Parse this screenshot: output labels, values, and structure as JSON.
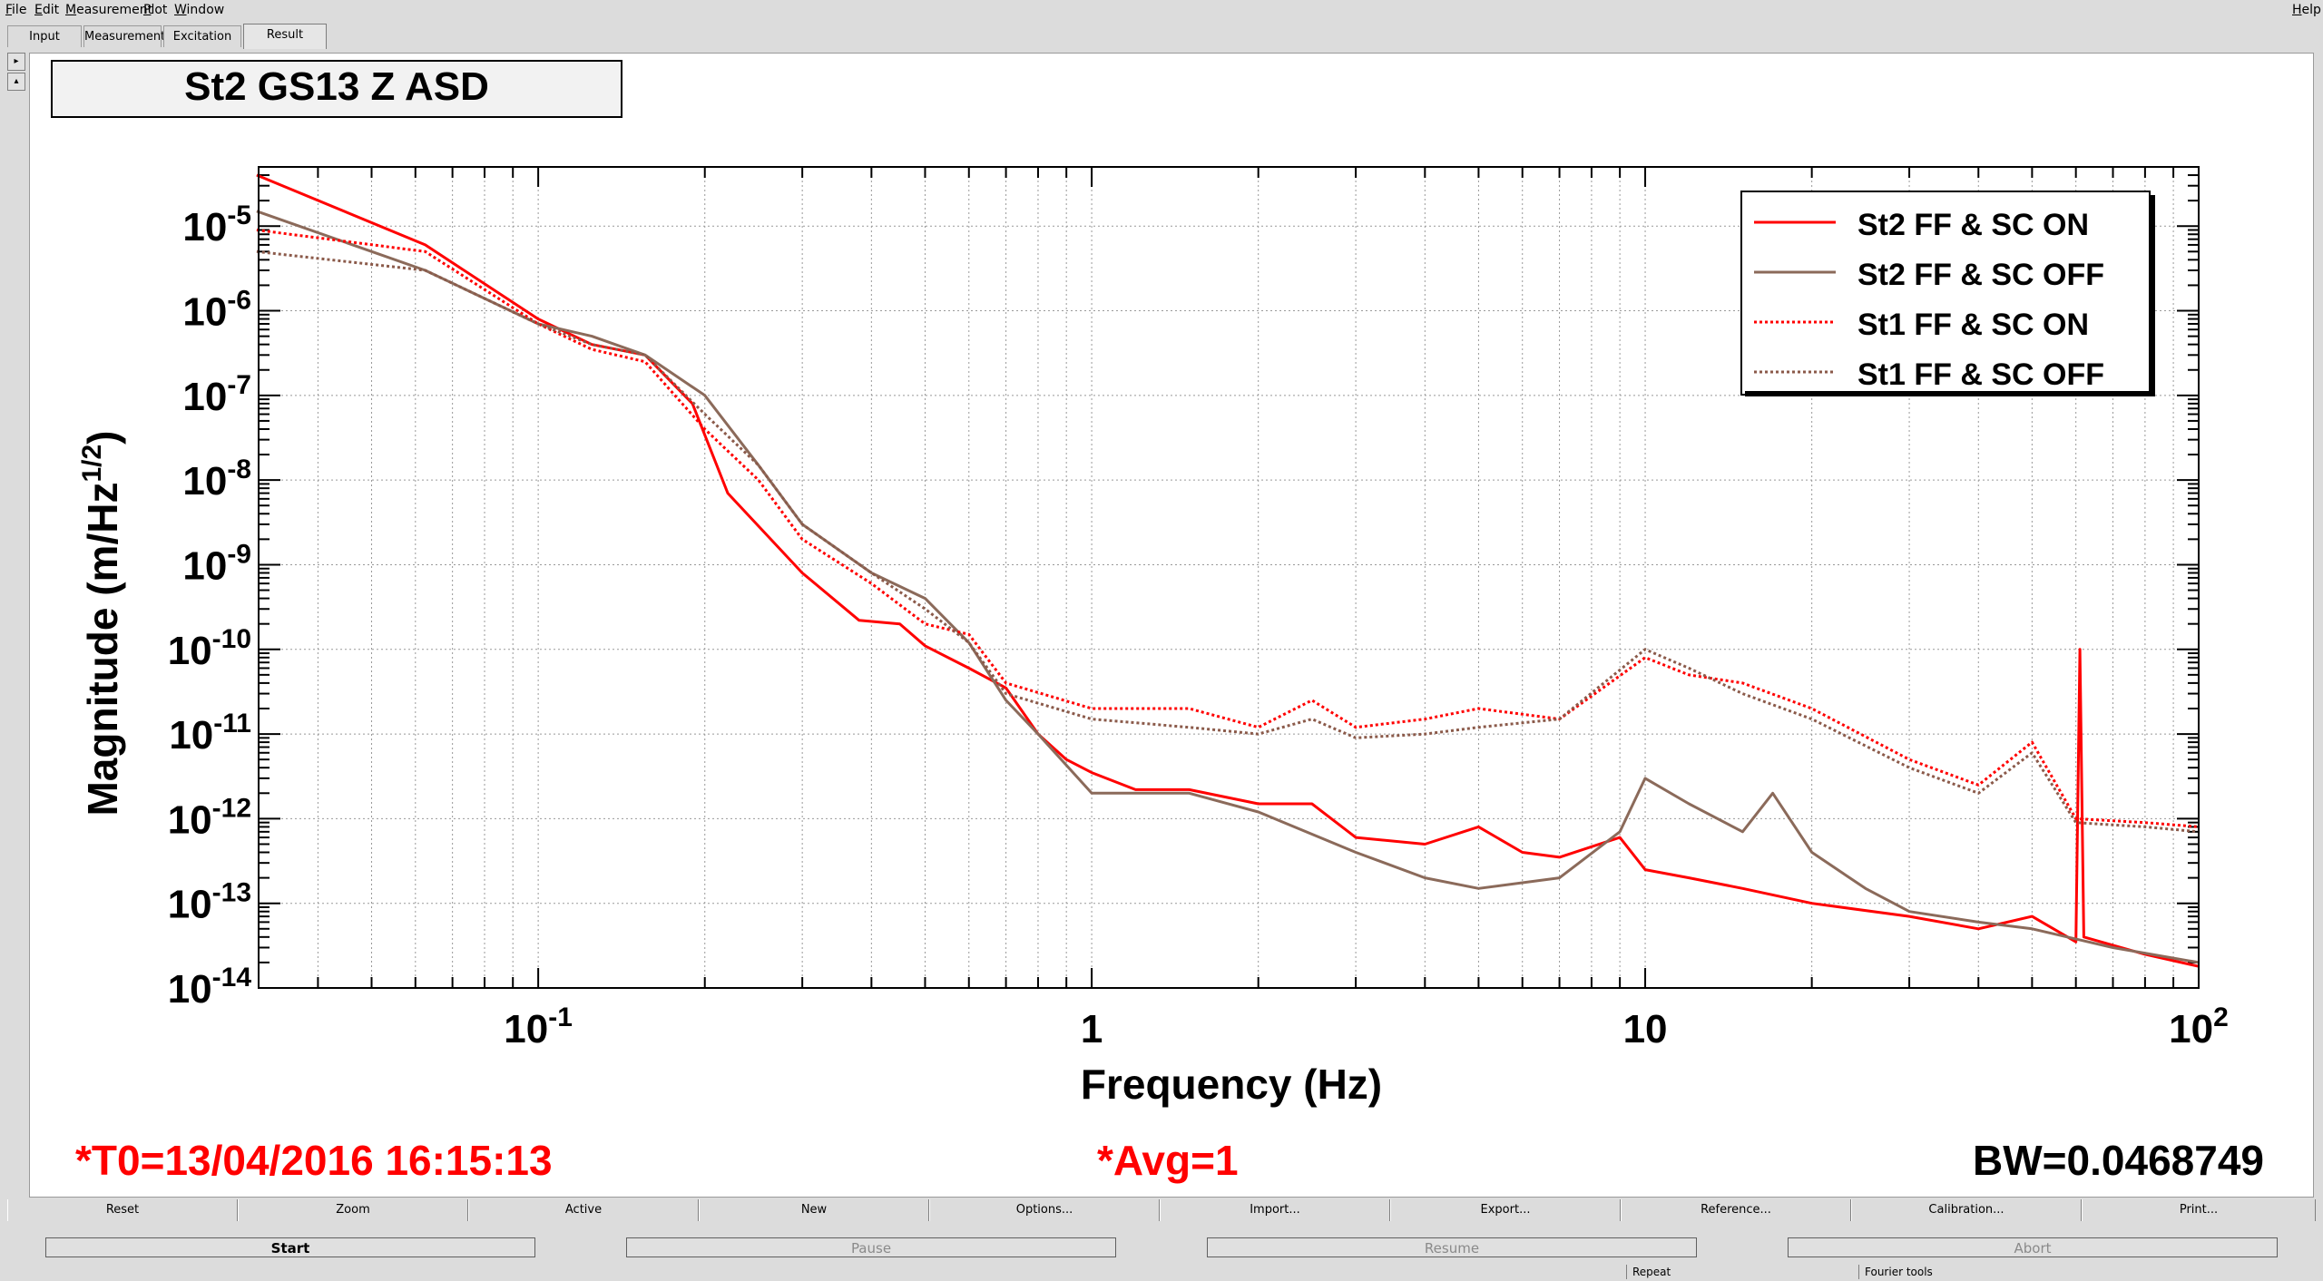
{
  "menu": [
    "File",
    "Edit",
    "Measurement",
    "Plot",
    "Window"
  ],
  "help": "Help",
  "tabs": [
    "Input",
    "Measurement",
    "Excitation",
    "Result"
  ],
  "active_tab": "Result",
  "side_buttons": [
    "▸",
    "▴"
  ],
  "plot_title": "St2 GS13 Z ASD",
  "footer": {
    "t0": "*T0=13/04/2016 16:15:13",
    "avg": "*Avg=1",
    "bw": "BW=0.0468749"
  },
  "tool_buttons": [
    "Reset",
    "Zoom",
    "Active",
    "New",
    "Options...",
    "Import...",
    "Export...",
    "Reference...",
    "Calibration...",
    "Print..."
  ],
  "control_buttons": [
    "Start",
    "Pause",
    "Resume",
    "Abort"
  ],
  "status_fields": [
    "Repeat",
    "Fourier tools"
  ],
  "chart_data": {
    "type": "line",
    "title": "St2 GS13 Z ASD",
    "xlabel": "Frequency (Hz)",
    "ylabel": "Magnitude (m/Hz1/2)",
    "x_scale": "log",
    "y_scale": "log",
    "xlim": [
      0.03125,
      100
    ],
    "ylim": [
      1e-14,
      5e-05
    ],
    "x_ticks": [
      {
        "label": "10",
        "sup": "-1"
      },
      {
        "label": "1",
        "sup": ""
      },
      {
        "label": "10",
        "sup": ""
      },
      {
        "label": "10",
        "sup": "2"
      }
    ],
    "y_ticks": [
      "-5",
      "-6",
      "-7",
      "-8",
      "-9",
      "-10",
      "-11",
      "-12",
      "-13",
      "-14"
    ],
    "grid": true,
    "legend_position": "top-right",
    "series": [
      {
        "name": "St2 FF & SC ON",
        "color": "#ff0000",
        "style": "solid",
        "points": [
          [
            0.031,
            4e-05
          ],
          [
            0.0625,
            6e-06
          ],
          [
            0.1,
            8e-07
          ],
          [
            0.125,
            4e-07
          ],
          [
            0.156,
            3e-07
          ],
          [
            0.19,
            8e-08
          ],
          [
            0.22,
            7e-09
          ],
          [
            0.3,
            8e-10
          ],
          [
            0.38,
            2.2e-10
          ],
          [
            0.45,
            2e-10
          ],
          [
            0.5,
            1.1e-10
          ],
          [
            0.6,
            6e-11
          ],
          [
            0.7,
            3.5e-11
          ],
          [
            0.8,
            1e-11
          ],
          [
            0.9,
            5e-12
          ],
          [
            1.0,
            3.5e-12
          ],
          [
            1.2,
            2.2e-12
          ],
          [
            1.5,
            2.2e-12
          ],
          [
            2.0,
            1.5e-12
          ],
          [
            2.5,
            1.5e-12
          ],
          [
            3.0,
            6e-13
          ],
          [
            4.0,
            5e-13
          ],
          [
            5.0,
            8e-13
          ],
          [
            6.0,
            4e-13
          ],
          [
            7.0,
            3.5e-13
          ],
          [
            9.0,
            6e-13
          ],
          [
            10.0,
            2.5e-13
          ],
          [
            12.0,
            2e-13
          ],
          [
            15.0,
            1.5e-13
          ],
          [
            20.0,
            1e-13
          ],
          [
            30.0,
            7e-14
          ],
          [
            40.0,
            5e-14
          ],
          [
            50.0,
            7e-14
          ],
          [
            60.0,
            3.5e-14
          ],
          [
            61.0,
            1e-10
          ],
          [
            62.0,
            4e-14
          ],
          [
            80.0,
            2.5e-14
          ],
          [
            100.0,
            1.8e-14
          ]
        ]
      },
      {
        "name": "St2 FF & SC OFF",
        "color": "#8b6a5a",
        "style": "solid",
        "points": [
          [
            0.031,
            1.5e-05
          ],
          [
            0.0625,
            3e-06
          ],
          [
            0.1,
            7e-07
          ],
          [
            0.125,
            5e-07
          ],
          [
            0.156,
            3e-07
          ],
          [
            0.2,
            1e-07
          ],
          [
            0.25,
            1.5e-08
          ],
          [
            0.3,
            3e-09
          ],
          [
            0.4,
            8e-10
          ],
          [
            0.5,
            4e-10
          ],
          [
            0.6,
            1.2e-10
          ],
          [
            0.7,
            2.5e-11
          ],
          [
            0.8,
            1e-11
          ],
          [
            1.0,
            2e-12
          ],
          [
            1.2,
            2e-12
          ],
          [
            1.5,
            2e-12
          ],
          [
            2.0,
            1.2e-12
          ],
          [
            3.0,
            4e-13
          ],
          [
            4.0,
            2e-13
          ],
          [
            5.0,
            1.5e-13
          ],
          [
            7.0,
            2e-13
          ],
          [
            9.0,
            7e-13
          ],
          [
            10.0,
            3e-12
          ],
          [
            12.0,
            1.5e-12
          ],
          [
            15.0,
            7e-13
          ],
          [
            17.0,
            2e-12
          ],
          [
            20.0,
            4e-13
          ],
          [
            25.0,
            1.5e-13
          ],
          [
            30.0,
            8e-14
          ],
          [
            40.0,
            6e-14
          ],
          [
            50.0,
            5e-14
          ],
          [
            70.0,
            3e-14
          ],
          [
            100.0,
            2e-14
          ]
        ]
      },
      {
        "name": "St1 FF & SC ON",
        "color": "#ff0000",
        "style": "dotted",
        "points": [
          [
            0.031,
            9e-06
          ],
          [
            0.0625,
            5e-06
          ],
          [
            0.1,
            7e-07
          ],
          [
            0.125,
            3.5e-07
          ],
          [
            0.156,
            2.5e-07
          ],
          [
            0.2,
            4e-08
          ],
          [
            0.25,
            1e-08
          ],
          [
            0.3,
            2e-09
          ],
          [
            0.4,
            6e-10
          ],
          [
            0.5,
            2e-10
          ],
          [
            0.6,
            1.5e-10
          ],
          [
            0.7,
            4e-11
          ],
          [
            1.0,
            2e-11
          ],
          [
            1.5,
            2e-11
          ],
          [
            2.0,
            1.2e-11
          ],
          [
            2.5,
            2.5e-11
          ],
          [
            3.0,
            1.2e-11
          ],
          [
            4.0,
            1.5e-11
          ],
          [
            5.0,
            2e-11
          ],
          [
            7.0,
            1.5e-11
          ],
          [
            10.0,
            8e-11
          ],
          [
            12.0,
            5e-11
          ],
          [
            15.0,
            4e-11
          ],
          [
            20.0,
            2e-11
          ],
          [
            30.0,
            5e-12
          ],
          [
            40.0,
            2.5e-12
          ],
          [
            50.0,
            8e-12
          ],
          [
            60.0,
            1e-12
          ],
          [
            80.0,
            9e-13
          ],
          [
            100.0,
            8e-13
          ]
        ]
      },
      {
        "name": "St1 FF & SC OFF",
        "color": "#8b5a4a",
        "style": "dotted",
        "points": [
          [
            0.031,
            5e-06
          ],
          [
            0.0625,
            3e-06
          ],
          [
            0.1,
            7e-07
          ],
          [
            0.125,
            4e-07
          ],
          [
            0.156,
            3e-07
          ],
          [
            0.2,
            6e-08
          ],
          [
            0.25,
            1.5e-08
          ],
          [
            0.3,
            3e-09
          ],
          [
            0.4,
            8e-10
          ],
          [
            0.5,
            3e-10
          ],
          [
            0.6,
            1.2e-10
          ],
          [
            0.7,
            3e-11
          ],
          [
            1.0,
            1.5e-11
          ],
          [
            1.5,
            1.2e-11
          ],
          [
            2.0,
            1e-11
          ],
          [
            2.5,
            1.5e-11
          ],
          [
            3.0,
            9e-12
          ],
          [
            4.0,
            1e-11
          ],
          [
            5.0,
            1.2e-11
          ],
          [
            7.0,
            1.5e-11
          ],
          [
            10.0,
            1e-10
          ],
          [
            12.0,
            6e-11
          ],
          [
            15.0,
            3e-11
          ],
          [
            20.0,
            1.5e-11
          ],
          [
            30.0,
            4e-12
          ],
          [
            40.0,
            2e-12
          ],
          [
            50.0,
            6e-12
          ],
          [
            60.0,
            9e-13
          ],
          [
            80.0,
            8e-13
          ],
          [
            100.0,
            7e-13
          ]
        ]
      }
    ]
  }
}
